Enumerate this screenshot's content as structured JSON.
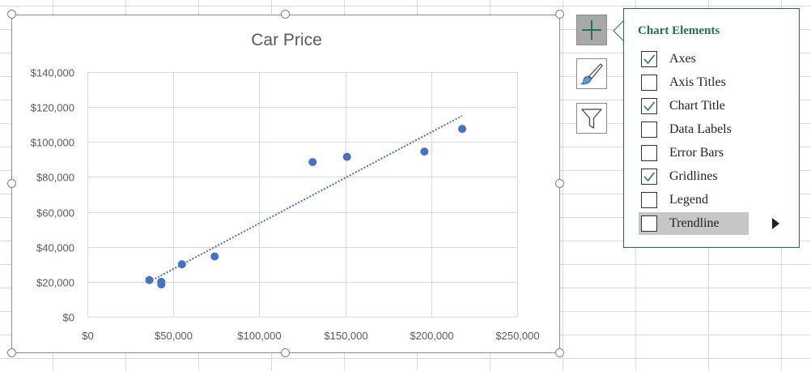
{
  "chart": {
    "title": "Car Price"
  },
  "chart_data": {
    "type": "scatter",
    "title": "Car Price",
    "xlabel": "",
    "ylabel": "",
    "x_tick_labels": [
      "$0",
      "$50,000",
      "$100,000",
      "$150,000",
      "$200,000",
      "$250,000"
    ],
    "y_tick_labels": [
      "$0",
      "$20,000",
      "$40,000",
      "$60,000",
      "$80,000",
      "$100,000",
      "$120,000",
      "$140,000"
    ],
    "xlim": [
      0,
      250000
    ],
    "ylim": [
      0,
      140000
    ],
    "x_ticks": [
      0,
      50000,
      100000,
      150000,
      200000,
      250000
    ],
    "y_ticks": [
      0,
      20000,
      40000,
      60000,
      80000,
      100000,
      120000,
      140000
    ],
    "grid": true,
    "legend": "none",
    "series": [
      {
        "points": [
          {
            "x": 36000,
            "y": 21000
          },
          {
            "x": 43000,
            "y": 20000
          },
          {
            "x": 43000,
            "y": 18500
          },
          {
            "x": 55000,
            "y": 30000
          },
          {
            "x": 74000,
            "y": 34500
          },
          {
            "x": 131000,
            "y": 88500
          },
          {
            "x": 151000,
            "y": 91500
          },
          {
            "x": 196000,
            "y": 94500
          },
          {
            "x": 218000,
            "y": 107500
          }
        ],
        "color": "#4472c4"
      }
    ],
    "trendline": {
      "type": "linear",
      "style": "dotted",
      "color": "#4472c4",
      "start": {
        "x": 36000,
        "y": 20000
      },
      "end": {
        "x": 218000,
        "y": 115000
      }
    }
  },
  "side_buttons": {
    "plus": {
      "icon": "plus-icon",
      "color": "#217346"
    },
    "brush": {
      "icon": "brush-icon"
    },
    "filter": {
      "icon": "filter-icon"
    }
  },
  "panel": {
    "title": "Chart Elements",
    "items": [
      {
        "label": "Axes",
        "checked": true
      },
      {
        "label": "Axis Titles",
        "checked": false
      },
      {
        "label": "Chart Title",
        "checked": true
      },
      {
        "label": "Data Labels",
        "checked": false
      },
      {
        "label": "Error Bars",
        "checked": false
      },
      {
        "label": "Gridlines",
        "checked": true
      },
      {
        "label": "Legend",
        "checked": false
      },
      {
        "label": "Trendline",
        "checked": false,
        "highlighted": true
      }
    ],
    "submenu_arrow_icon": "caret-right-icon",
    "accent_color": "#217346"
  }
}
